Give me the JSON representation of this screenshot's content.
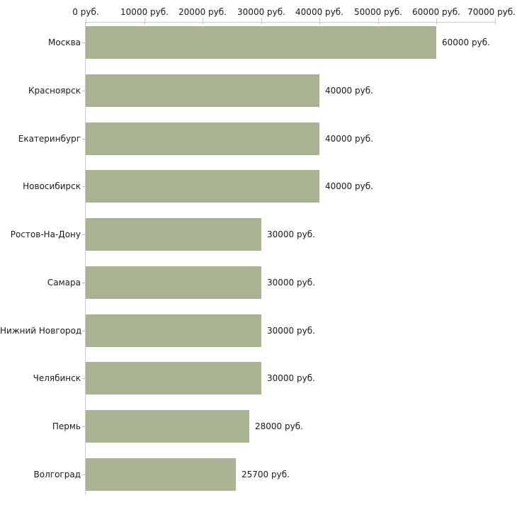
{
  "chart_data": {
    "type": "bar",
    "orientation": "horizontal",
    "title": "",
    "xlabel": "",
    "ylabel": "",
    "unit": "руб.",
    "categories": [
      "Москва",
      "Красноярск",
      "Екатеринбург",
      "Новосибирск",
      "Ростов-На-Дону",
      "Самара",
      "Нижний Новгород",
      "Челябинск",
      "Пермь",
      "Волгоград"
    ],
    "values": [
      60000,
      40000,
      40000,
      40000,
      30000,
      30000,
      30000,
      30000,
      28000,
      25700
    ],
    "value_labels": [
      "60000 руб.",
      "40000 руб.",
      "40000 руб.",
      "40000 руб.",
      "30000 руб.",
      "30000 руб.",
      "30000 руб.",
      "30000 руб.",
      "28000 руб.",
      "25700 руб."
    ],
    "x_ticks": [
      0,
      10000,
      20000,
      30000,
      40000,
      50000,
      60000,
      70000
    ],
    "x_tick_labels": [
      "0 руб.",
      "10000 руб.",
      "20000 руб.",
      "30000 руб.",
      "40000 руб.",
      "50000 руб.",
      "60000 руб.",
      "70000 руб."
    ],
    "xlim": [
      0,
      70000
    ],
    "grid": false,
    "legend": false,
    "colors": {
      "bar": "#aab294",
      "axis": "#cccccc",
      "tick": "#c9c4a0",
      "text": "#1a1a1a",
      "background": "#ffffff"
    }
  }
}
